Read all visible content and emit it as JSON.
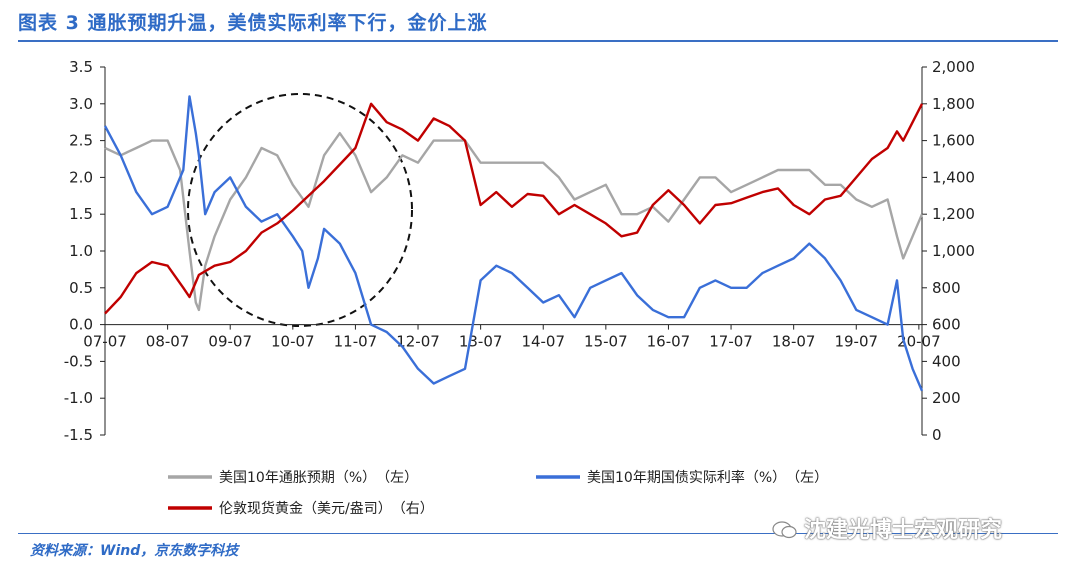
{
  "title": "图表 3 通胀预期升温，美债实际利率下行，金价上涨",
  "source": "资料来源：Wind，京东数字科技",
  "watermark": "沈建光博士宏观研究",
  "colors": {
    "title": "#2f6bc6",
    "inflation": "#a6a6a6",
    "real_rate": "#3a6fd8",
    "gold": "#c00000",
    "rule": "#3a6fc4"
  },
  "chart_data": {
    "type": "line",
    "x_tick_labels": [
      "07-07",
      "08-07",
      "09-07",
      "10-07",
      "11-07",
      "12-07",
      "13-07",
      "14-07",
      "15-07",
      "16-07",
      "17-07",
      "18-07",
      "19-07",
      "20-07"
    ],
    "y_left": {
      "ticks": [
        "3.5",
        "3.0",
        "2.5",
        "2.0",
        "1.5",
        "1.0",
        "0.5",
        "0.0",
        "-0.5",
        "-1.0",
        "-1.5"
      ],
      "range": [
        -1.5,
        3.5
      ]
    },
    "y_right": {
      "ticks": [
        "2,000",
        "1,800",
        "1,600",
        "1,400",
        "1,200",
        "1,000",
        "800",
        "600",
        "400",
        "200",
        "0"
      ],
      "range": [
        0,
        2000
      ]
    },
    "legend_position": "bottom",
    "series": [
      {
        "name": "美国10年通胀预期（%）　（左）",
        "axis": "left",
        "points": [
          [
            2007.5,
            2.4
          ],
          [
            2007.75,
            2.3
          ],
          [
            2008.0,
            2.4
          ],
          [
            2008.25,
            2.5
          ],
          [
            2008.5,
            2.5
          ],
          [
            2008.7,
            2.1
          ],
          [
            2008.85,
            1.0
          ],
          [
            2008.95,
            0.3
          ],
          [
            2009.0,
            0.2
          ],
          [
            2009.1,
            0.8
          ],
          [
            2009.25,
            1.2
          ],
          [
            2009.5,
            1.7
          ],
          [
            2009.75,
            2.0
          ],
          [
            2010.0,
            2.4
          ],
          [
            2010.25,
            2.3
          ],
          [
            2010.5,
            1.9
          ],
          [
            2010.75,
            1.6
          ],
          [
            2011.0,
            2.3
          ],
          [
            2011.25,
            2.6
          ],
          [
            2011.5,
            2.3
          ],
          [
            2011.75,
            1.8
          ],
          [
            2012.0,
            2.0
          ],
          [
            2012.25,
            2.3
          ],
          [
            2012.5,
            2.2
          ],
          [
            2012.75,
            2.5
          ],
          [
            2013.0,
            2.5
          ],
          [
            2013.25,
            2.5
          ],
          [
            2013.5,
            2.2
          ],
          [
            2013.75,
            2.2
          ],
          [
            2014.0,
            2.2
          ],
          [
            2014.25,
            2.2
          ],
          [
            2014.5,
            2.2
          ],
          [
            2014.75,
            2.0
          ],
          [
            2015.0,
            1.7
          ],
          [
            2015.25,
            1.8
          ],
          [
            2015.5,
            1.9
          ],
          [
            2015.75,
            1.5
          ],
          [
            2016.0,
            1.5
          ],
          [
            2016.25,
            1.6
          ],
          [
            2016.5,
            1.4
          ],
          [
            2016.75,
            1.7
          ],
          [
            2017.0,
            2.0
          ],
          [
            2017.25,
            2.0
          ],
          [
            2017.5,
            1.8
          ],
          [
            2017.75,
            1.9
          ],
          [
            2018.0,
            2.0
          ],
          [
            2018.25,
            2.1
          ],
          [
            2018.5,
            2.1
          ],
          [
            2018.75,
            2.1
          ],
          [
            2019.0,
            1.9
          ],
          [
            2019.25,
            1.9
          ],
          [
            2019.5,
            1.7
          ],
          [
            2019.75,
            1.6
          ],
          [
            2020.0,
            1.7
          ],
          [
            2020.15,
            1.2
          ],
          [
            2020.25,
            0.9
          ],
          [
            2020.4,
            1.2
          ],
          [
            2020.55,
            1.5
          ]
        ]
      },
      {
        "name": "美国10年期国债实际利率（%）　（左）",
        "axis": "left",
        "points": [
          [
            2007.5,
            2.7
          ],
          [
            2007.75,
            2.3
          ],
          [
            2008.0,
            1.8
          ],
          [
            2008.25,
            1.5
          ],
          [
            2008.5,
            1.6
          ],
          [
            2008.75,
            2.1
          ],
          [
            2008.85,
            3.1
          ],
          [
            2008.95,
            2.6
          ],
          [
            2009.0,
            2.3
          ],
          [
            2009.1,
            1.5
          ],
          [
            2009.25,
            1.8
          ],
          [
            2009.5,
            2.0
          ],
          [
            2009.75,
            1.6
          ],
          [
            2010.0,
            1.4
          ],
          [
            2010.25,
            1.5
          ],
          [
            2010.5,
            1.2
          ],
          [
            2010.65,
            1.0
          ],
          [
            2010.75,
            0.5
          ],
          [
            2010.9,
            0.9
          ],
          [
            2011.0,
            1.3
          ],
          [
            2011.25,
            1.1
          ],
          [
            2011.5,
            0.7
          ],
          [
            2011.75,
            0.0
          ],
          [
            2012.0,
            -0.1
          ],
          [
            2012.25,
            -0.3
          ],
          [
            2012.5,
            -0.6
          ],
          [
            2012.75,
            -0.8
          ],
          [
            2013.0,
            -0.7
          ],
          [
            2013.25,
            -0.6
          ],
          [
            2013.5,
            0.6
          ],
          [
            2013.75,
            0.8
          ],
          [
            2014.0,
            0.7
          ],
          [
            2014.25,
            0.5
          ],
          [
            2014.5,
            0.3
          ],
          [
            2014.75,
            0.4
          ],
          [
            2015.0,
            0.1
          ],
          [
            2015.25,
            0.5
          ],
          [
            2015.5,
            0.6
          ],
          [
            2015.75,
            0.7
          ],
          [
            2016.0,
            0.4
          ],
          [
            2016.25,
            0.2
          ],
          [
            2016.5,
            0.1
          ],
          [
            2016.75,
            0.1
          ],
          [
            2017.0,
            0.5
          ],
          [
            2017.25,
            0.6
          ],
          [
            2017.5,
            0.5
          ],
          [
            2017.75,
            0.5
          ],
          [
            2018.0,
            0.7
          ],
          [
            2018.25,
            0.8
          ],
          [
            2018.5,
            0.9
          ],
          [
            2018.75,
            1.1
          ],
          [
            2019.0,
            0.9
          ],
          [
            2019.25,
            0.6
          ],
          [
            2019.5,
            0.2
          ],
          [
            2019.75,
            0.1
          ],
          [
            2020.0,
            0.0
          ],
          [
            2020.15,
            0.6
          ],
          [
            2020.25,
            -0.2
          ],
          [
            2020.4,
            -0.6
          ],
          [
            2020.55,
            -0.9
          ]
        ]
      },
      {
        "name": "伦敦现货黄金（美元/盎司）　（右）",
        "axis": "right",
        "points": [
          [
            2007.5,
            660
          ],
          [
            2007.75,
            750
          ],
          [
            2008.0,
            880
          ],
          [
            2008.25,
            940
          ],
          [
            2008.5,
            920
          ],
          [
            2008.75,
            800
          ],
          [
            2008.85,
            750
          ],
          [
            2009.0,
            870
          ],
          [
            2009.25,
            920
          ],
          [
            2009.5,
            940
          ],
          [
            2009.75,
            1000
          ],
          [
            2010.0,
            1100
          ],
          [
            2010.25,
            1150
          ],
          [
            2010.5,
            1220
          ],
          [
            2010.75,
            1300
          ],
          [
            2011.0,
            1380
          ],
          [
            2011.25,
            1470
          ],
          [
            2011.5,
            1560
          ],
          [
            2011.75,
            1800
          ],
          [
            2012.0,
            1700
          ],
          [
            2012.25,
            1660
          ],
          [
            2012.5,
            1600
          ],
          [
            2012.75,
            1720
          ],
          [
            2013.0,
            1680
          ],
          [
            2013.25,
            1600
          ],
          [
            2013.5,
            1250
          ],
          [
            2013.75,
            1320
          ],
          [
            2014.0,
            1240
          ],
          [
            2014.25,
            1310
          ],
          [
            2014.5,
            1300
          ],
          [
            2014.75,
            1200
          ],
          [
            2015.0,
            1250
          ],
          [
            2015.25,
            1200
          ],
          [
            2015.5,
            1150
          ],
          [
            2015.75,
            1080
          ],
          [
            2016.0,
            1100
          ],
          [
            2016.25,
            1250
          ],
          [
            2016.5,
            1330
          ],
          [
            2016.75,
            1250
          ],
          [
            2017.0,
            1150
          ],
          [
            2017.25,
            1250
          ],
          [
            2017.5,
            1260
          ],
          [
            2017.75,
            1290
          ],
          [
            2018.0,
            1320
          ],
          [
            2018.25,
            1340
          ],
          [
            2018.5,
            1250
          ],
          [
            2018.75,
            1200
          ],
          [
            2019.0,
            1280
          ],
          [
            2019.25,
            1300
          ],
          [
            2019.5,
            1400
          ],
          [
            2019.75,
            1500
          ],
          [
            2020.0,
            1560
          ],
          [
            2020.15,
            1650
          ],
          [
            2020.25,
            1600
          ],
          [
            2020.4,
            1700
          ],
          [
            2020.55,
            1800
          ]
        ]
      }
    ]
  }
}
